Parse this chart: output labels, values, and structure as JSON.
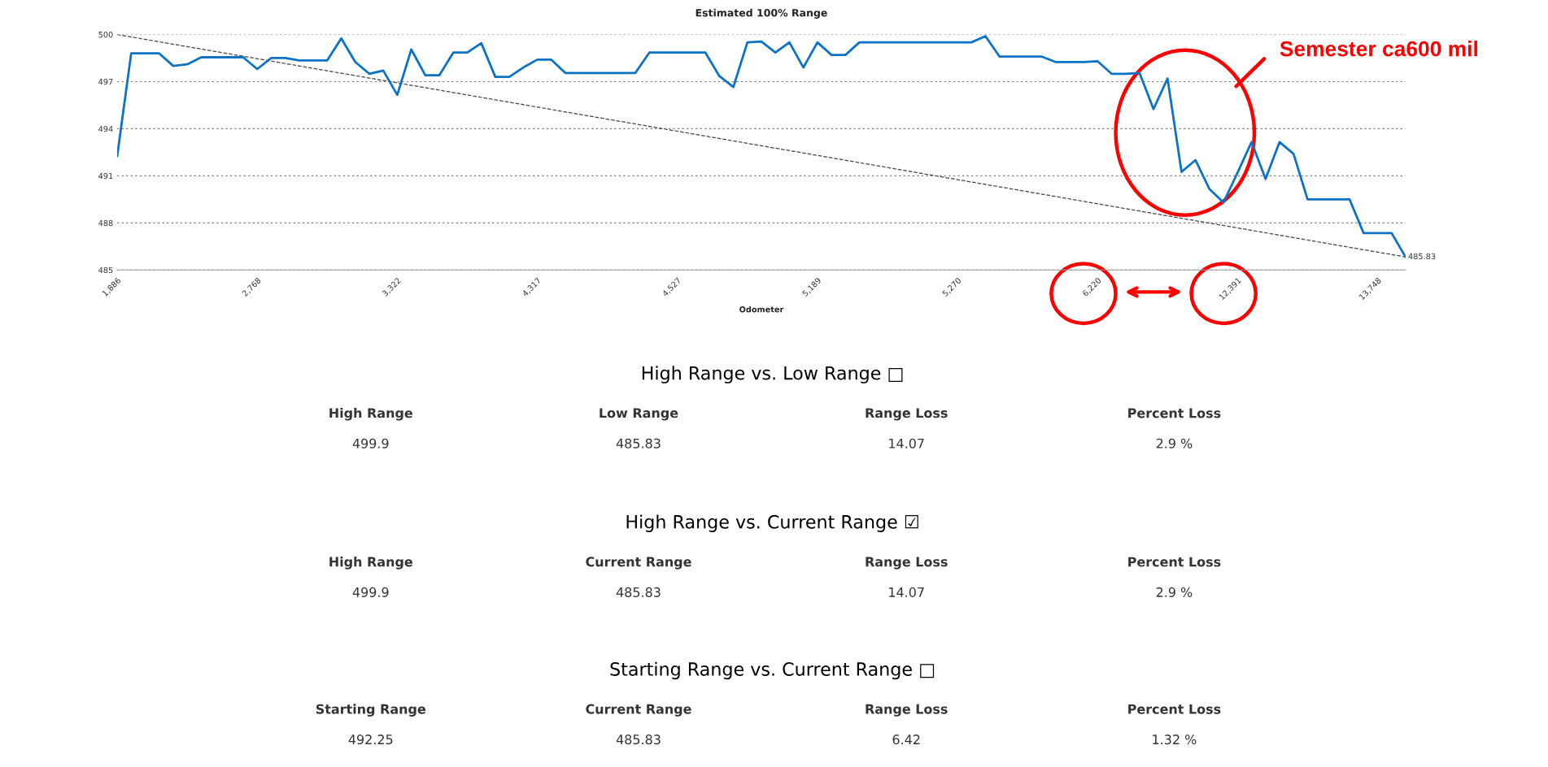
{
  "chart_data": [
    {
      "type": "line",
      "title": "Estimated 100% Range",
      "xlabel": "Odometer",
      "categories": [
        "1,886",
        null,
        null,
        null,
        null,
        null,
        null,
        null,
        null,
        null,
        "2,768",
        null,
        null,
        null,
        null,
        null,
        null,
        null,
        null,
        null,
        "3,322",
        null,
        null,
        null,
        null,
        null,
        null,
        null,
        null,
        null,
        "4,317",
        null,
        null,
        null,
        null,
        null,
        null,
        null,
        null,
        null,
        "4,527",
        null,
        null,
        null,
        null,
        null,
        null,
        null,
        null,
        null,
        "5,189",
        null,
        null,
        null,
        null,
        null,
        null,
        null,
        null,
        null,
        "5,270",
        null,
        null,
        null,
        null,
        null,
        null,
        null,
        null,
        null,
        "6,220",
        null,
        null,
        null,
        null,
        null,
        null,
        null,
        null,
        null,
        "12,391",
        null,
        null,
        null,
        null,
        null,
        null,
        null,
        null,
        null,
        "13,748",
        null,
        null
      ],
      "series": [
        {
          "color": "#0b72c6",
          "values": [
            492.25,
            498.8,
            498.8,
            498.8,
            498.0,
            498.1,
            498.55,
            498.55,
            498.55,
            498.55,
            497.8,
            498.5,
            498.5,
            498.35,
            498.35,
            498.35,
            499.75,
            498.25,
            497.5,
            497.7,
            496.15,
            499.05,
            497.4,
            497.4,
            498.85,
            498.85,
            499.45,
            497.3,
            497.3,
            497.9,
            498.4,
            498.4,
            497.55,
            497.55,
            497.55,
            497.55,
            497.55,
            497.55,
            498.85,
            498.85,
            498.85,
            498.85,
            498.85,
            497.35,
            496.65,
            499.5,
            499.55,
            498.85,
            499.5,
            497.9,
            499.5,
            498.7,
            498.7,
            499.5,
            499.5,
            499.5,
            499.5,
            499.5,
            499.5,
            499.5,
            499.5,
            499.5,
            499.9,
            498.6,
            498.6,
            498.6,
            498.6,
            498.25,
            498.25,
            498.25,
            498.3,
            497.5,
            497.5,
            497.55,
            495.25,
            497.2,
            491.25,
            492.0,
            490.15,
            489.3,
            491.2,
            493.15,
            490.8,
            493.15,
            492.4,
            489.5,
            489.5,
            489.5,
            489.5,
            487.35,
            487.35,
            487.35,
            485.83
          ]
        },
        {
          "type": "line",
          "color": "#444444",
          "line_style": "dashed",
          "values": [
            500,
            null,
            null,
            null,
            null,
            null,
            null,
            null,
            null,
            null,
            null,
            null,
            null,
            null,
            null,
            null,
            null,
            null,
            null,
            null,
            null,
            null,
            null,
            null,
            null,
            null,
            null,
            null,
            null,
            null,
            null,
            null,
            null,
            null,
            null,
            null,
            null,
            null,
            null,
            null,
            null,
            null,
            null,
            null,
            null,
            null,
            null,
            null,
            null,
            null,
            null,
            null,
            null,
            null,
            null,
            null,
            null,
            null,
            null,
            null,
            null,
            null,
            null,
            null,
            null,
            null,
            null,
            null,
            null,
            null,
            null,
            null,
            null,
            null,
            null,
            null,
            null,
            null,
            null,
            null,
            null,
            null,
            null,
            null,
            null,
            null,
            null,
            null,
            null,
            null,
            null,
            null,
            485.83
          ],
          "value_labels": [
            null,
            null,
            null,
            null,
            null,
            null,
            null,
            null,
            null,
            null,
            null,
            null,
            null,
            null,
            null,
            null,
            null,
            null,
            null,
            null,
            null,
            null,
            null,
            null,
            null,
            null,
            null,
            null,
            null,
            null,
            null,
            null,
            null,
            null,
            null,
            null,
            null,
            null,
            null,
            null,
            null,
            null,
            null,
            null,
            null,
            null,
            null,
            null,
            null,
            null,
            null,
            null,
            null,
            null,
            null,
            null,
            null,
            null,
            null,
            null,
            null,
            null,
            null,
            null,
            null,
            null,
            null,
            null,
            null,
            null,
            null,
            null,
            null,
            null,
            null,
            null,
            null,
            null,
            null,
            null,
            null,
            null,
            null,
            null,
            null,
            null,
            null,
            null,
            null,
            null,
            null,
            null,
            "485.83"
          ]
        }
      ],
      "ylim": [
        485,
        500
      ],
      "yticks": [
        485,
        488,
        491,
        494,
        497,
        500
      ],
      "grid": "y",
      "annotations": [
        "Semester ca600 mil"
      ]
    },
    {
      "type": "other",
      "title": "High Range vs. Low Range □",
      "categories": [
        "High Range",
        "Low Range",
        "Range Loss",
        "Percent Loss"
      ],
      "value_labels": [
        "499.9",
        "485.83",
        "14.07",
        "2.9 %"
      ]
    },
    {
      "type": "other",
      "title": "High Range vs. Current Range ☑",
      "categories": [
        "High Range",
        "Current Range",
        "Range Loss",
        "Percent Loss"
      ],
      "value_labels": [
        "499.9",
        "485.83",
        "14.07",
        "2.9 %"
      ]
    },
    {
      "type": "other",
      "title": "Starting Range vs. Current Range □",
      "categories": [
        "Starting Range",
        "Current Range",
        "Range Loss",
        "Percent Loss"
      ],
      "value_labels": [
        "492.25",
        "485.83",
        "6.42",
        "1.32 %"
      ]
    }
  ]
}
